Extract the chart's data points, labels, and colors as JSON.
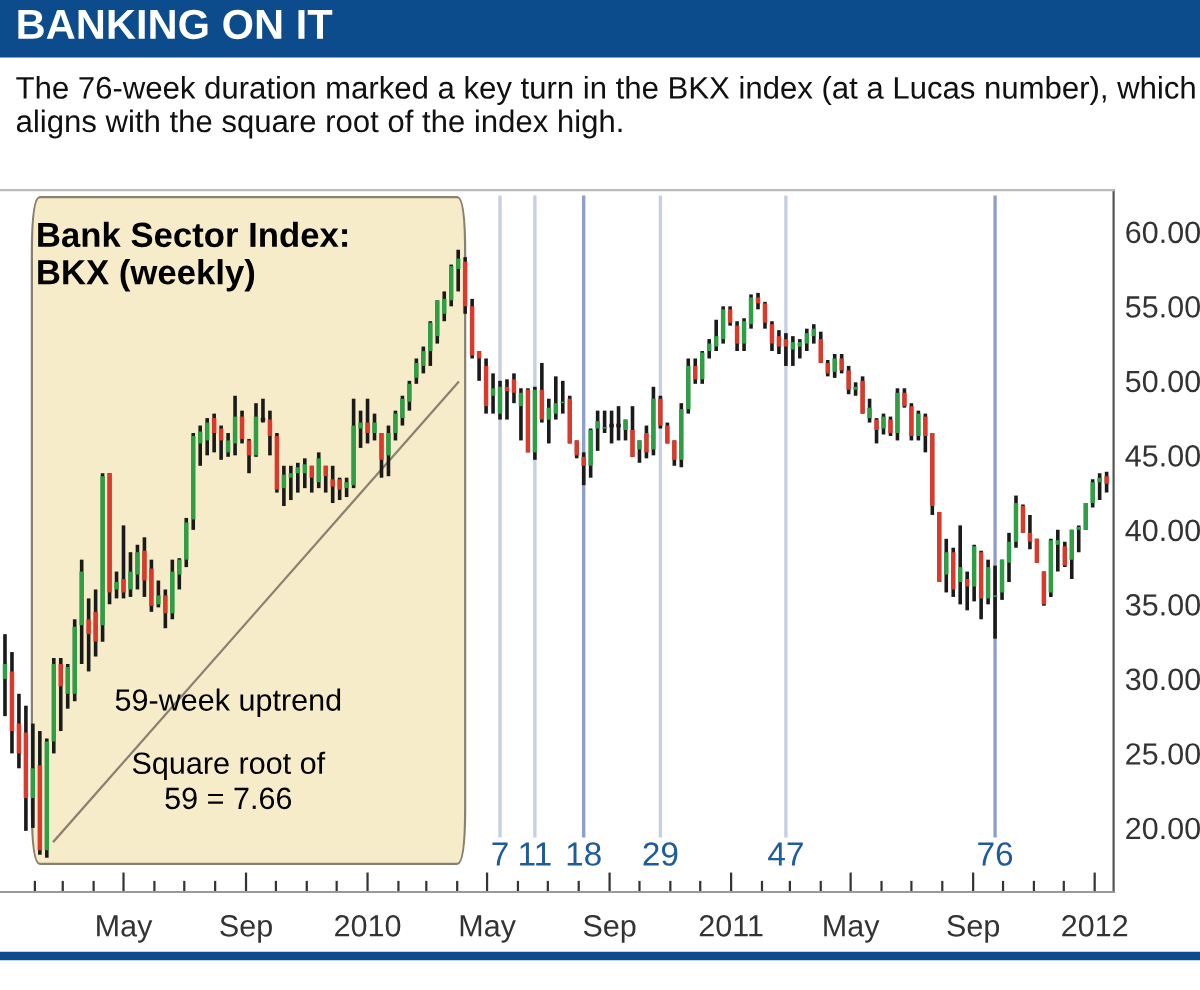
{
  "chart_data": {
    "type": "candlestick",
    "title": "BANKING ON IT",
    "subtitle": "The 76-week duration marked a key turn in the BKX index (at a Lucas number), which aligns with the square root of the index high.",
    "x": [
      "2009-01-02",
      "2009-01-09",
      "2009-01-16",
      "2009-01-23",
      "2009-01-30",
      "2009-02-06",
      "2009-02-13",
      "2009-02-20",
      "2009-02-27",
      "2009-03-06",
      "2009-03-13",
      "2009-03-20",
      "2009-03-27",
      "2009-04-03",
      "2009-04-10",
      "2009-04-17",
      "2009-04-24",
      "2009-05-01",
      "2009-05-08",
      "2009-05-15",
      "2009-05-22",
      "2009-05-29",
      "2009-06-05",
      "2009-06-12",
      "2009-06-19",
      "2009-06-26",
      "2009-07-03",
      "2009-07-10",
      "2009-07-17",
      "2009-07-24",
      "2009-07-31",
      "2009-08-07",
      "2009-08-14",
      "2009-08-21",
      "2009-08-28",
      "2009-09-04",
      "2009-09-11",
      "2009-09-18",
      "2009-09-25",
      "2009-10-02",
      "2009-10-09",
      "2009-10-16",
      "2009-10-23",
      "2009-10-30",
      "2009-11-06",
      "2009-11-13",
      "2009-11-20",
      "2009-11-27",
      "2009-12-04",
      "2009-12-11",
      "2009-12-18",
      "2009-12-25",
      "2010-01-01",
      "2010-01-08",
      "2010-01-15",
      "2010-01-22",
      "2010-01-29",
      "2010-02-05",
      "2010-02-12",
      "2010-02-19",
      "2010-02-26",
      "2010-03-05",
      "2010-03-12",
      "2010-03-19",
      "2010-03-26",
      "2010-04-02",
      "2010-04-09",
      "2010-04-16",
      "2010-04-23",
      "2010-04-30",
      "2010-05-07",
      "2010-05-14",
      "2010-05-21",
      "2010-05-28",
      "2010-06-04",
      "2010-06-11",
      "2010-06-18",
      "2010-06-25",
      "2010-07-02",
      "2010-07-09",
      "2010-07-16",
      "2010-07-23",
      "2010-07-30",
      "2010-08-06",
      "2010-08-13",
      "2010-08-20",
      "2010-08-27",
      "2010-09-03",
      "2010-09-10",
      "2010-09-17",
      "2010-09-24",
      "2010-10-01",
      "2010-10-08",
      "2010-10-15",
      "2010-10-22",
      "2010-10-29",
      "2010-11-05",
      "2010-11-12",
      "2010-11-19",
      "2010-11-26",
      "2010-12-03",
      "2010-12-10",
      "2010-12-17",
      "2010-12-24",
      "2010-12-31",
      "2011-01-07",
      "2011-01-14",
      "2011-01-21",
      "2011-01-28",
      "2011-02-04",
      "2011-02-11",
      "2011-02-18",
      "2011-02-25",
      "2011-03-04",
      "2011-03-11",
      "2011-03-18",
      "2011-03-25",
      "2011-04-01",
      "2011-04-08",
      "2011-04-15",
      "2011-04-22",
      "2011-04-29",
      "2011-05-06",
      "2011-05-13",
      "2011-05-20",
      "2011-05-27",
      "2011-06-03",
      "2011-06-10",
      "2011-06-17",
      "2011-06-24",
      "2011-07-01",
      "2011-07-08",
      "2011-07-15",
      "2011-07-22",
      "2011-07-29",
      "2011-08-05",
      "2011-08-12",
      "2011-08-19",
      "2011-08-26",
      "2011-09-02",
      "2011-09-09",
      "2011-09-16",
      "2011-09-23",
      "2011-09-30",
      "2011-10-07",
      "2011-10-14",
      "2011-10-21",
      "2011-10-28",
      "2011-11-04",
      "2011-11-11",
      "2011-11-18",
      "2011-11-25",
      "2011-12-02",
      "2011-12-09",
      "2011-12-16",
      "2011-12-23",
      "2011-12-30",
      "2012-01-06",
      "2012-01-13"
    ],
    "ohlc": [
      [
        30,
        33,
        27.5,
        31
      ],
      [
        30.5,
        31.8,
        25,
        26.5
      ],
      [
        27,
        29,
        24,
        25
      ],
      [
        26.4,
        28.2,
        19.8,
        22
      ],
      [
        22,
        27,
        20,
        24
      ],
      [
        24.2,
        26.5,
        18.2,
        18.5
      ],
      [
        18.5,
        26,
        18,
        25.8
      ],
      [
        25.8,
        31.4,
        25,
        31
      ],
      [
        31,
        31.4,
        26.5,
        29.5
      ],
      [
        29,
        31,
        28,
        30.8
      ],
      [
        29,
        34,
        28.5,
        33.5
      ],
      [
        33.6,
        38,
        31,
        37.2
      ],
      [
        34,
        35.4,
        30.5,
        33
      ],
      [
        34.5,
        36,
        31.5,
        32.5
      ],
      [
        33.6,
        43.8,
        32.5,
        43.6
      ],
      [
        43.8,
        43.8,
        35,
        35.8
      ],
      [
        36,
        37.2,
        35.4,
        36.5
      ],
      [
        36.7,
        40.3,
        35.4,
        35.8
      ],
      [
        36,
        38.5,
        35.5,
        37.2
      ],
      [
        37,
        39,
        36,
        38.5
      ],
      [
        38.6,
        39.5,
        35.5,
        36.6
      ],
      [
        37.4,
        38,
        34.5,
        34.9
      ],
      [
        35,
        36.6,
        34.8,
        35.6
      ],
      [
        35.6,
        36,
        33.4,
        34.4
      ],
      [
        34.4,
        38,
        34,
        37.2
      ],
      [
        37,
        38.1,
        36,
        38
      ],
      [
        38,
        40.8,
        37.5,
        40.5
      ],
      [
        40.7,
        46.5,
        40,
        46.3
      ],
      [
        45.8,
        47,
        44.3,
        46.6
      ],
      [
        46,
        47.5,
        45,
        47.2
      ],
      [
        47.5,
        47.8,
        45.2,
        46.5
      ],
      [
        46.8,
        47,
        44.7,
        46
      ],
      [
        45.2,
        46.5,
        44.9,
        46
      ],
      [
        45.8,
        49,
        45,
        47.6
      ],
      [
        47.6,
        48,
        45.8,
        46.1
      ],
      [
        46,
        46.1,
        43.8,
        45
      ],
      [
        45,
        48.5,
        44.9,
        47.6
      ],
      [
        47.4,
        48.8,
        47.2,
        47.4
      ],
      [
        47.4,
        48,
        45,
        46.3
      ],
      [
        46.3,
        46.5,
        42.5,
        42.7
      ],
      [
        42.8,
        44.3,
        41.6,
        43.7
      ],
      [
        43.5,
        44.3,
        42,
        43.8
      ],
      [
        43.8,
        44.5,
        42.5,
        44.2
      ],
      [
        43.8,
        44.8,
        42.8,
        44.4
      ],
      [
        44.3,
        44.3,
        42.5,
        43.5
      ],
      [
        43.2,
        45.2,
        42.8,
        44.8
      ],
      [
        44.3,
        44.3,
        42.5,
        43.6
      ],
      [
        43.4,
        44.3,
        41.8,
        42.9
      ],
      [
        43.4,
        43.5,
        42,
        42.7
      ],
      [
        42.8,
        43.5,
        42.2,
        43.2
      ],
      [
        43,
        48.8,
        42.8,
        47
      ],
      [
        46.8,
        48,
        45.5,
        47.2
      ],
      [
        47.2,
        48.8,
        45.8,
        46.5
      ],
      [
        46.5,
        47.8,
        46,
        47.2
      ],
      [
        46.5,
        46.5,
        43.5,
        44.7
      ],
      [
        45,
        47,
        43.6,
        46.5
      ],
      [
        46.5,
        48,
        46,
        47.8
      ],
      [
        47.5,
        49,
        47,
        48.8
      ],
      [
        48.6,
        50,
        48,
        49.8
      ],
      [
        50.2,
        51.5,
        49.8,
        51.2
      ],
      [
        51,
        52.3,
        50.5,
        52
      ],
      [
        52,
        54,
        51,
        53.9
      ],
      [
        53,
        55.4,
        52.5,
        55.4
      ],
      [
        54.5,
        56,
        54,
        55.5
      ],
      [
        55.4,
        57.8,
        55,
        57.7
      ],
      [
        57.5,
        58.8,
        56,
        58.2
      ],
      [
        58,
        58.3,
        54.5,
        55
      ],
      [
        55,
        55.5,
        51.5,
        51.7
      ],
      [
        52,
        52,
        50,
        51.5
      ],
      [
        51,
        51.5,
        47.8,
        48.3
      ],
      [
        49,
        50.5,
        47.8,
        49.5
      ],
      [
        47.8,
        50,
        47.4,
        49.6
      ],
      [
        49.6,
        50.1,
        47.4,
        49.3
      ],
      [
        50.1,
        50.5,
        48.5,
        49.2
      ],
      [
        48.3,
        49.5,
        46,
        49.2
      ],
      [
        49.4,
        49.5,
        45.2,
        45.2
      ],
      [
        45.2,
        49.6,
        44.7,
        49.4
      ],
      [
        49.4,
        51.2,
        47.2,
        47.4
      ],
      [
        47.4,
        48.8,
        45.8,
        48.2
      ],
      [
        47.8,
        50.3,
        47.4,
        48.5
      ],
      [
        48.5,
        50,
        47.8,
        48.6
      ],
      [
        48.8,
        49,
        45.8,
        45.8
      ],
      [
        46,
        46,
        44.8,
        45
      ],
      [
        44.9,
        45.2,
        43,
        44.3
      ],
      [
        44.3,
        46.8,
        43.5,
        46.7
      ],
      [
        46.8,
        48,
        45.3,
        47.3
      ],
      [
        46.8,
        48,
        46.5,
        46.9
      ],
      [
        47,
        48,
        45.8,
        47
      ],
      [
        47,
        48.3,
        46,
        47
      ],
      [
        46.7,
        47.4,
        46,
        47.4
      ],
      [
        46.7,
        48.3,
        44.9,
        44.9
      ],
      [
        45.4,
        46,
        44.5,
        46
      ],
      [
        46.5,
        47,
        44.8,
        45.2
      ],
      [
        45.4,
        49.6,
        45,
        48.8
      ],
      [
        48.8,
        49,
        46.8,
        47
      ],
      [
        47,
        47.2,
        45.8,
        45.8
      ],
      [
        46,
        46,
        44.3,
        44.7
      ],
      [
        44.7,
        48.5,
        44.2,
        48.1
      ],
      [
        48.1,
        51.5,
        47.8,
        51
      ],
      [
        51,
        51.5,
        49.8,
        50.1
      ],
      [
        50.1,
        52,
        49.8,
        51.9
      ],
      [
        52,
        52.8,
        51.5,
        52.5
      ],
      [
        52.3,
        54.1,
        52,
        53
      ],
      [
        52.8,
        55,
        52.5,
        54.8
      ],
      [
        54.8,
        55,
        53.7,
        53.9
      ],
      [
        53.7,
        54,
        52,
        52.5
      ],
      [
        52.5,
        54.2,
        52,
        54
      ],
      [
        53.8,
        55.8,
        53.5,
        55.6
      ],
      [
        55.6,
        55.9,
        54.8,
        55.2
      ],
      [
        55.2,
        55.3,
        53.5,
        53.9
      ],
      [
        53.8,
        54,
        52,
        52.5
      ],
      [
        53,
        53.4,
        51.8,
        52.3
      ],
      [
        52.8,
        53.2,
        51,
        52.3
      ],
      [
        52.1,
        53,
        51,
        52.6
      ],
      [
        52.3,
        52.8,
        51.5,
        52.6
      ],
      [
        52.5,
        53.5,
        52,
        53.2
      ],
      [
        53,
        53.8,
        52.5,
        53.5
      ],
      [
        52.8,
        53.3,
        51.2,
        51.2
      ],
      [
        51.2,
        51.4,
        50.3,
        50.5
      ],
      [
        50.6,
        51.8,
        50.2,
        51.5
      ],
      [
        51.5,
        51.8,
        50.5,
        50.7
      ],
      [
        50.7,
        51,
        49.1,
        49.4
      ],
      [
        49.4,
        49.9,
        49,
        49.6
      ],
      [
        50,
        50.3,
        47.8,
        47.8
      ],
      [
        47.5,
        48.8,
        47.2,
        48.2
      ],
      [
        47.4,
        47.5,
        45.8,
        46.7
      ],
      [
        46.8,
        47.8,
        46.4,
        47.6
      ],
      [
        47.4,
        47.6,
        46.3,
        46.5
      ],
      [
        46.5,
        49.5,
        46,
        49.2
      ],
      [
        49.2,
        49.5,
        48.2,
        48.3
      ],
      [
        48.3,
        48.5,
        46,
        46.3
      ],
      [
        46.3,
        48,
        46,
        47.8
      ],
      [
        47.6,
        47.8,
        45.2,
        46.3
      ],
      [
        46.5,
        46.5,
        41,
        41.6
      ],
      [
        41.2,
        41.2,
        36.5,
        36.5
      ],
      [
        37,
        39.4,
        35.8,
        38.5
      ],
      [
        38.5,
        38.8,
        35.5,
        36
      ],
      [
        36.5,
        40.3,
        35,
        37.5
      ],
      [
        36.7,
        37.2,
        34.6,
        36.2
      ],
      [
        36.2,
        39,
        35.2,
        38.9
      ],
      [
        38.5,
        38.6,
        34,
        35.4
      ],
      [
        35.4,
        38,
        35,
        37.5
      ],
      [
        35.5,
        37.6,
        32.7,
        35.6
      ],
      [
        35.8,
        38,
        35.3,
        38
      ],
      [
        37.8,
        39.8,
        36.5,
        39.2
      ],
      [
        39.2,
        42.3,
        38.8,
        41.8
      ],
      [
        41.6,
        41.7,
        39.8,
        39.8
      ],
      [
        39.8,
        41,
        38.7,
        39.2
      ],
      [
        39.4,
        39.4,
        37.8,
        37.8
      ],
      [
        37.2,
        37.2,
        34.9,
        35
      ],
      [
        35.8,
        39.4,
        35.5,
        39.3
      ],
      [
        39,
        40,
        37.2,
        39.3
      ],
      [
        38.9,
        39.2,
        37.5,
        37.6
      ],
      [
        38,
        40,
        36.7,
        40
      ],
      [
        40,
        40.3,
        38.5,
        40.2
      ],
      [
        40,
        41.8,
        40,
        41.8
      ],
      [
        41.8,
        43.4,
        41.5,
        43.2
      ],
      [
        43.2,
        43.8,
        42,
        43.5
      ],
      [
        43.6,
        43.9,
        42.5,
        43.1
      ]
    ],
    "series": [
      {
        "type": "line",
        "x": [
          "2009-02-20",
          "2010-04-02"
        ],
        "values": [
          19.1,
          49.9
        ],
        "color": "#8a8070"
      }
    ],
    "bands": [
      {
        "axis": "x",
        "from": "2009-01-29",
        "to": "2010-04-09",
        "label": "Bank Sector Index:\nBKX (weekly)",
        "color": "#f6ecc9"
      }
    ],
    "ref_lines": [
      {
        "axis": "x",
        "value": "2010-05-14",
        "label": "7",
        "color": "#c5cfe3"
      },
      {
        "axis": "x",
        "value": "2010-06-18",
        "label": "11",
        "color": "#c5cfe3"
      },
      {
        "axis": "x",
        "value": "2010-08-06",
        "label": "18",
        "color": "#8e9fc8"
      },
      {
        "axis": "x",
        "value": "2010-10-22",
        "label": "29",
        "color": "#c5cfe3"
      },
      {
        "axis": "x",
        "value": "2011-02-25",
        "label": "47",
        "color": "#c5cfe3"
      },
      {
        "axis": "x",
        "value": "2011-09-23",
        "label": "76",
        "color": "#8e9fc8"
      }
    ],
    "annotations": [
      "59-week uptrend",
      "Square root of\n59 = 7.66"
    ],
    "xlim": [
      "2008-12-28",
      "2012-01-20"
    ],
    "xticks": [
      {
        "value": "2009-02-01",
        "label": null
      },
      {
        "value": "2009-03-01",
        "label": null
      },
      {
        "value": "2009-04-01",
        "label": null
      },
      {
        "value": "2009-05-01",
        "label": "May"
      },
      {
        "value": "2009-06-01",
        "label": null
      },
      {
        "value": "2009-07-01",
        "label": null
      },
      {
        "value": "2009-08-01",
        "label": null
      },
      {
        "value": "2009-09-01",
        "label": "Sep"
      },
      {
        "value": "2009-10-01",
        "label": null
      },
      {
        "value": "2009-11-01",
        "label": null
      },
      {
        "value": "2009-12-01",
        "label": null
      },
      {
        "value": "2010-01-01",
        "label": "2010"
      },
      {
        "value": "2010-02-01",
        "label": null
      },
      {
        "value": "2010-03-01",
        "label": null
      },
      {
        "value": "2010-04-01",
        "label": null
      },
      {
        "value": "2010-05-01",
        "label": "May"
      },
      {
        "value": "2010-06-01",
        "label": null
      },
      {
        "value": "2010-07-01",
        "label": null
      },
      {
        "value": "2010-08-01",
        "label": null
      },
      {
        "value": "2010-09-01",
        "label": "Sep"
      },
      {
        "value": "2010-10-01",
        "label": null
      },
      {
        "value": "2010-11-01",
        "label": null
      },
      {
        "value": "2010-12-01",
        "label": null
      },
      {
        "value": "2011-01-01",
        "label": "2011"
      },
      {
        "value": "2011-02-01",
        "label": null
      },
      {
        "value": "2011-03-01",
        "label": null
      },
      {
        "value": "2011-04-01",
        "label": null
      },
      {
        "value": "2011-05-01",
        "label": "May"
      },
      {
        "value": "2011-06-01",
        "label": null
      },
      {
        "value": "2011-07-01",
        "label": null
      },
      {
        "value": "2011-08-01",
        "label": null
      },
      {
        "value": "2011-09-01",
        "label": "Sep"
      },
      {
        "value": "2011-10-01",
        "label": null
      },
      {
        "value": "2011-11-01",
        "label": null
      },
      {
        "value": "2011-12-01",
        "label": null
      },
      {
        "value": "2012-01-01",
        "label": "2012"
      }
    ],
    "ylim": [
      15.7,
      62.8
    ],
    "yticks": [
      {
        "value": 20,
        "label": "20.00"
      },
      {
        "value": 25,
        "label": "25.00"
      },
      {
        "value": 30,
        "label": "30.00"
      },
      {
        "value": 35,
        "label": "35.00"
      },
      {
        "value": 40,
        "label": "40.00"
      },
      {
        "value": 45,
        "label": "45.00"
      },
      {
        "value": 50,
        "label": "50.00"
      },
      {
        "value": 55,
        "label": "55.00"
      },
      {
        "value": 60,
        "label": "60.00"
      }
    ],
    "grid": false,
    "legend": false
  }
}
